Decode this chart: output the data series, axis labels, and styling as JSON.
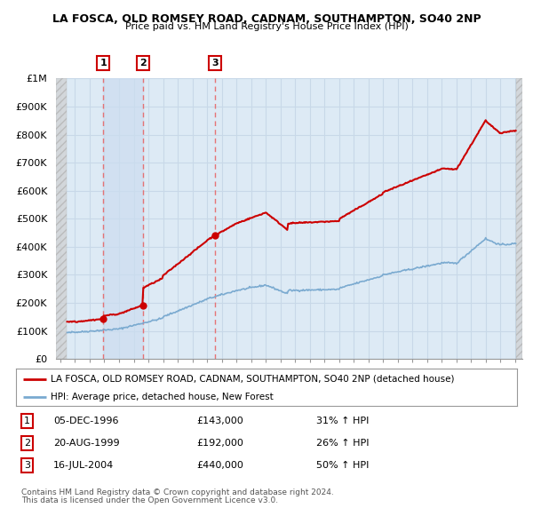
{
  "title1": "LA FOSCA, OLD ROMSEY ROAD, CADNAM, SOUTHAMPTON, SO40 2NP",
  "title2": "Price paid vs. HM Land Registry's House Price Index (HPI)",
  "yticks": [
    0,
    100000,
    200000,
    300000,
    400000,
    500000,
    600000,
    700000,
    800000,
    900000,
    1000000
  ],
  "ytick_labels": [
    "£0",
    "£100K",
    "£200K",
    "£300K",
    "£400K",
    "£500K",
    "£600K",
    "£700K",
    "£800K",
    "£900K",
    "£1M"
  ],
  "xmin": 1993.7,
  "xmax": 2025.5,
  "ymin": 0,
  "ymax": 1000000,
  "hpi_color": "#7aaad0",
  "price_color": "#cc0000",
  "sale_marker_color": "#cc0000",
  "vline_color": "#e86060",
  "grid_color": "#c8d8e8",
  "bg_color": "#ddeaf5",
  "hatch_bg": "#c8c8c8",
  "shade_color": "#ccddf0",
  "sales": [
    {
      "date": 1996.92,
      "price": 143000,
      "label": "1"
    },
    {
      "date": 1999.63,
      "price": 192000,
      "label": "2"
    },
    {
      "date": 2004.54,
      "price": 440000,
      "label": "3"
    }
  ],
  "table_rows": [
    {
      "num": "1",
      "date": "05-DEC-1996",
      "price": "£143,000",
      "change": "31% ↑ HPI"
    },
    {
      "num": "2",
      "date": "20-AUG-1999",
      "price": "£192,000",
      "change": "26% ↑ HPI"
    },
    {
      "num": "3",
      "date": "16-JUL-2004",
      "price": "£440,000",
      "change": "50% ↑ HPI"
    }
  ],
  "legend_line1": "LA FOSCA, OLD ROMSEY ROAD, CADNAM, SOUTHAMPTON, SO40 2NP (detached house)",
  "legend_line2": "HPI: Average price, detached house, New Forest",
  "footnote1": "Contains HM Land Registry data © Crown copyright and database right 2024.",
  "footnote2": "This data is licensed under the Open Government Licence v3.0."
}
